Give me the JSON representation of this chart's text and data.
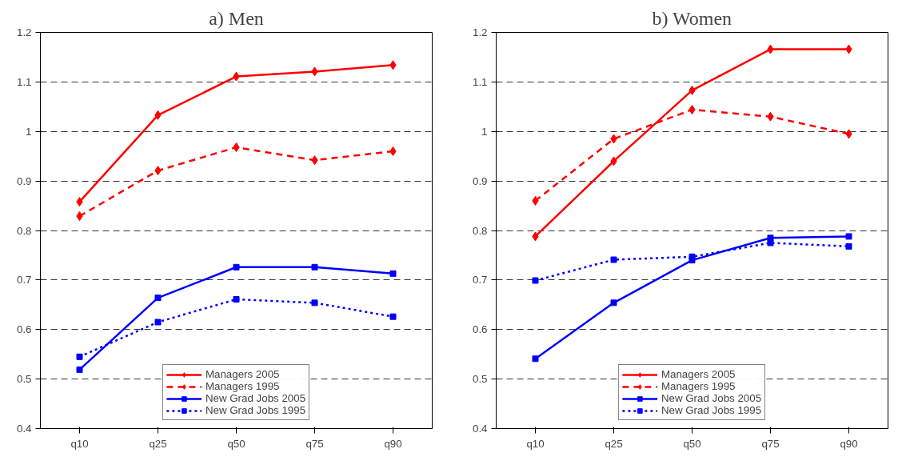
{
  "chart_data": [
    {
      "type": "line",
      "title": "a) Men",
      "categories": [
        "q10",
        "q25",
        "q50",
        "q75",
        "q90"
      ],
      "ylim": [
        0.4,
        1.2
      ],
      "yticks": [
        0.4,
        0.5,
        0.6,
        0.7,
        0.8,
        0.9,
        1,
        1.1,
        1.2
      ],
      "grid": "y",
      "legend": "bottom",
      "series": [
        {
          "name": "Managers 2005",
          "color": "#ff0000",
          "marker": "diamond",
          "line_style": "solid",
          "values": [
            0.858,
            1.033,
            1.111,
            1.121,
            1.134
          ]
        },
        {
          "name": "Managers 1995",
          "color": "#ff0000",
          "marker": "diamond",
          "line_style": "dashed",
          "values": [
            0.829,
            0.921,
            0.968,
            0.942,
            0.96
          ]
        },
        {
          "name": "New Grad Jobs 2005",
          "color": "#0000ff",
          "marker": "square",
          "line_style": "solid",
          "values": [
            0.519,
            0.664,
            0.726,
            0.726,
            0.713
          ]
        },
        {
          "name": "New Grad Jobs 1995",
          "color": "#0000ff",
          "marker": "square",
          "line_style": "dotted",
          "values": [
            0.545,
            0.615,
            0.661,
            0.654,
            0.626
          ]
        }
      ]
    },
    {
      "type": "line",
      "title": "b) Women",
      "categories": [
        "q10",
        "q25",
        "q50",
        "q75",
        "q90"
      ],
      "ylim": [
        0.4,
        1.2
      ],
      "yticks": [
        0.4,
        0.5,
        0.6,
        0.7,
        0.8,
        0.9,
        1,
        1.1,
        1.2
      ],
      "grid": "y",
      "legend": "bottom",
      "series": [
        {
          "name": "Managers 2005",
          "color": "#ff0000",
          "marker": "diamond",
          "line_style": "solid",
          "values": [
            0.788,
            0.94,
            1.083,
            1.166,
            1.166
          ]
        },
        {
          "name": "Managers 1995",
          "color": "#ff0000",
          "marker": "diamond",
          "line_style": "dashed",
          "values": [
            0.86,
            0.985,
            1.044,
            1.03,
            0.995
          ]
        },
        {
          "name": "New Grad Jobs 2005",
          "color": "#0000ff",
          "marker": "square",
          "line_style": "solid",
          "values": [
            0.541,
            0.654,
            0.74,
            0.785,
            0.788
          ]
        },
        {
          "name": "New Grad Jobs 1995",
          "color": "#0000ff",
          "marker": "square",
          "line_style": "dotted",
          "values": [
            0.699,
            0.741,
            0.747,
            0.775,
            0.768
          ]
        }
      ]
    }
  ]
}
